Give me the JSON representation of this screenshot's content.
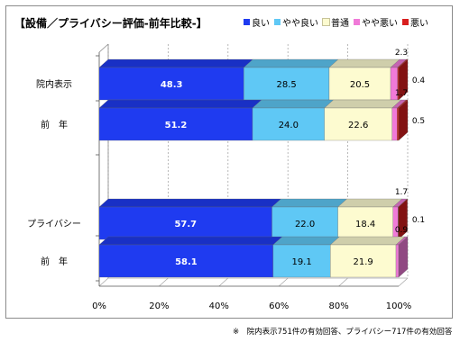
{
  "title": "【設備／プライバシー評価-前年比較-】",
  "footnote": "※　院内表示751件の有効回答、プライバシー717件の有効回答",
  "legend": [
    {
      "label": "良い",
      "color": "#1f3bf0"
    },
    {
      "label": "やや良い",
      "color": "#5fc8f5"
    },
    {
      "label": "普通",
      "color": "#fdfbd0"
    },
    {
      "label": "やや悪い",
      "color": "#f07ad8"
    },
    {
      "label": "悪い",
      "color": "#d81e1e"
    }
  ],
  "chart_data": {
    "type": "bar",
    "orientation": "horizontal",
    "stacked": "percent",
    "categories": [
      "院内表示",
      "前　年",
      "プライバシー",
      "前　年"
    ],
    "series": [
      {
        "name": "良い",
        "values": [
          48.3,
          51.2,
          57.7,
          58.1
        ]
      },
      {
        "name": "やや良い",
        "values": [
          28.5,
          24.0,
          22.0,
          19.1
        ]
      },
      {
        "name": "普通",
        "values": [
          20.5,
          22.6,
          18.4,
          21.9
        ]
      },
      {
        "name": "やや悪い",
        "values": [
          2.3,
          1.7,
          1.7,
          0.9
        ]
      },
      {
        "name": "悪い",
        "values": [
          0.4,
          0.5,
          0.1,
          0.0
        ]
      }
    ],
    "outside_labels": [
      {
        "row": 0,
        "small": "2.3",
        "tiny": "0.4"
      },
      {
        "row": 1,
        "small": "1.7",
        "tiny": "0.5"
      },
      {
        "row": 2,
        "small": "1.7",
        "tiny": "0.1"
      },
      {
        "row": 3,
        "small": "0.9",
        "tiny": ""
      }
    ],
    "x_ticks": [
      "0%",
      "20%",
      "40%",
      "60%",
      "80%",
      "100%"
    ],
    "xlim": [
      0,
      100
    ],
    "grid": true,
    "legend_position": "top-right"
  }
}
